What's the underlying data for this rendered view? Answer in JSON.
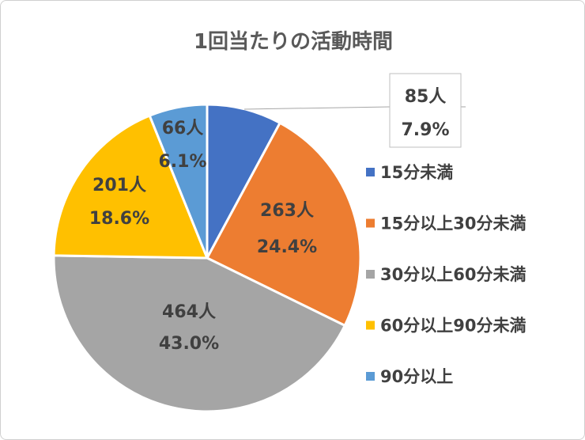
{
  "chart_data": {
    "type": "pie",
    "title": "1回当たりの活動時間",
    "categories": [
      "15分未満",
      "15分以上30分未満",
      "30分以上60分未満",
      "60分以上90分未満",
      "90分以上"
    ],
    "values": [
      85,
      263,
      464,
      201,
      66
    ],
    "value_labels": [
      "85人",
      "263人",
      "464人",
      "201人",
      "66人"
    ],
    "percent_labels": [
      "7.9%",
      "24.4%",
      "43.0%",
      "18.6%",
      "6.1%"
    ],
    "colors": [
      "#4472C4",
      "#ED7D31",
      "#A5A5A5",
      "#FFC000",
      "#5B9BD5"
    ],
    "start_angle": "12 o'clock",
    "direction": "clockwise",
    "legend_position": "right"
  }
}
